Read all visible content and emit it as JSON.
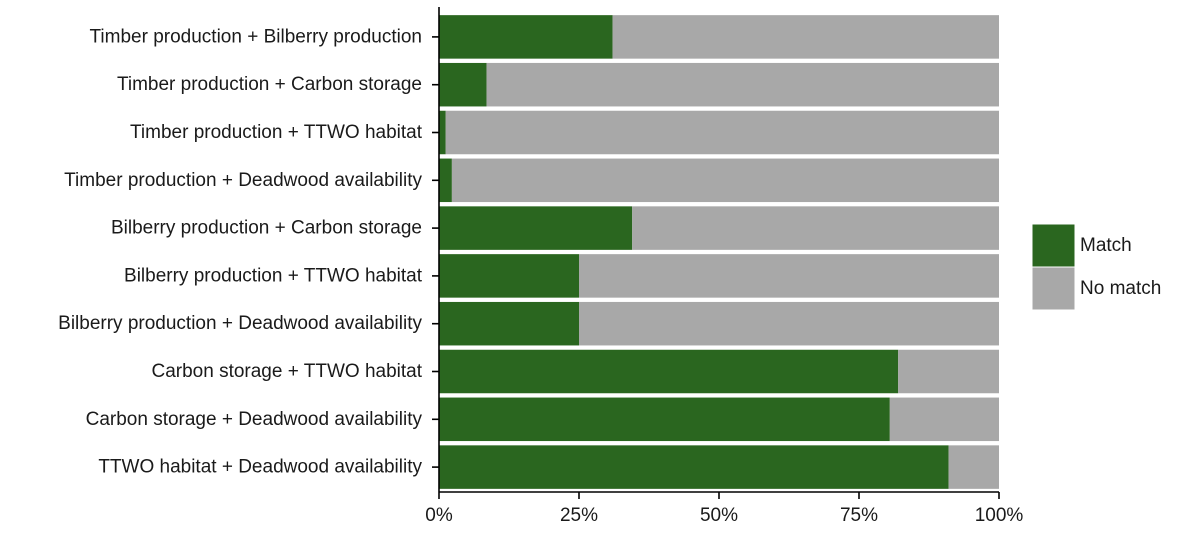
{
  "chart_data": {
    "type": "bar",
    "orientation": "horizontal",
    "stacked": true,
    "title": "",
    "xlabel": "",
    "ylabel": "",
    "xlim": [
      0,
      100
    ],
    "categories": [
      "Timber production + Bilberry production",
      "Timber production + Carbon storage",
      "Timber production + TTWO habitat",
      "Timber production + Deadwood availability",
      "Bilberry production + Carbon storage",
      "Bilberry production + TTWO habitat",
      "Bilberry production + Deadwood availability",
      "Carbon storage + TTWO habitat",
      "Carbon storage + Deadwood availability",
      "TTWO habitat + Deadwood availability"
    ],
    "series": [
      {
        "name": "Match",
        "color": "#2a661f",
        "values": [
          31,
          8.5,
          1.2,
          2.3,
          34.5,
          25,
          25,
          82,
          80.5,
          91
        ]
      },
      {
        "name": "No match",
        "color": "#a8a8a8",
        "values": [
          69,
          91.5,
          98.8,
          97.7,
          65.5,
          75,
          75,
          18,
          19.5,
          9
        ]
      }
    ],
    "x_ticks": [
      "0%",
      "25%",
      "50%",
      "75%",
      "100%"
    ],
    "grid": false,
    "legend_position": "right"
  }
}
